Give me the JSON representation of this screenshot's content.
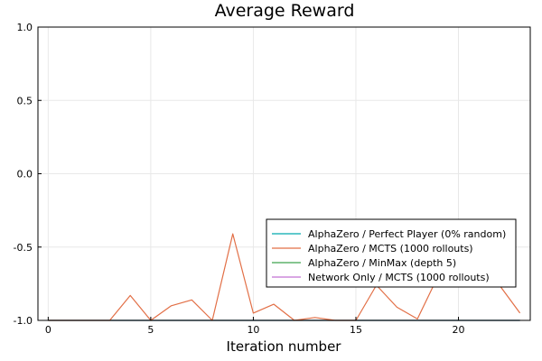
{
  "chart_data": {
    "type": "line",
    "title": "Average Reward",
    "xlabel": "Iteration number",
    "ylabel": "",
    "xlim": [
      -0.5,
      23.5
    ],
    "ylim": [
      -1.0,
      1.0
    ],
    "xticks": [
      0,
      5,
      10,
      15,
      20
    ],
    "yticks": [
      -1.0,
      -0.5,
      0.0,
      0.5,
      1.0
    ],
    "ytick_labels": [
      "-1.0",
      "-0.5",
      "0.0",
      "0.5",
      "1.0"
    ],
    "grid": true,
    "legend_position": "bottom-right",
    "series": [
      {
        "name": "AlphaZero / Perfect Player (0% random)",
        "color": "#00a9ad",
        "x": [
          0,
          1,
          2,
          3,
          4,
          5,
          6,
          7,
          8,
          9,
          10,
          11,
          12,
          13,
          14,
          15,
          16,
          17,
          18,
          19,
          20,
          21,
          22,
          23
        ],
        "y": [
          -1,
          -1,
          -1,
          -1,
          -1,
          -1,
          -1,
          -1,
          -1,
          -1,
          -1,
          -1,
          -1,
          -1,
          -1,
          -1,
          -1,
          -1,
          -1,
          -1,
          -1,
          -1,
          -1,
          -1
        ]
      },
      {
        "name": "AlphaZero / MCTS (1000 rollouts)",
        "color": "#e26f46",
        "x": [
          0,
          1,
          2,
          3,
          4,
          5,
          6,
          7,
          8,
          9,
          10,
          11,
          12,
          13,
          14,
          15,
          16,
          17,
          18,
          19,
          20,
          21,
          22,
          23
        ],
        "y": [
          -1.0,
          -1.0,
          -1.0,
          -1.0,
          -0.83,
          -1.0,
          -0.9,
          -0.86,
          -1.0,
          -0.41,
          -0.95,
          -0.89,
          -1.0,
          -0.98,
          -1.0,
          -1.0,
          -0.76,
          -0.91,
          -0.99,
          -0.7,
          -0.7,
          -0.7,
          -0.76,
          -0.95
        ]
      },
      {
        "name": "AlphaZero / MinMax (depth 5)",
        "color": "#3da44d",
        "x": [
          0,
          1,
          2,
          3,
          4,
          5,
          6,
          7,
          8,
          9,
          10,
          11,
          12,
          13,
          14,
          15,
          16,
          17,
          18,
          19,
          20,
          21,
          22,
          23
        ],
        "y": [
          -1,
          -1,
          -1,
          -1,
          -1,
          -1,
          -1,
          -1,
          -1,
          -1,
          -1,
          -1,
          -1,
          -1,
          -1,
          -1,
          -1,
          -1,
          -1,
          -1,
          -1,
          -1,
          -1,
          -1
        ]
      },
      {
        "name": "Network Only / MCTS (1000 rollouts)",
        "color": "#c271d2",
        "x": [
          0,
          1,
          2,
          3,
          4,
          5,
          6,
          7,
          8,
          9,
          10,
          11,
          12,
          13,
          14,
          15,
          16,
          17,
          18,
          19,
          20,
          21,
          22,
          23
        ],
        "y": [
          -1,
          -1,
          -1,
          -1,
          -1,
          -1,
          -1,
          -1,
          -1,
          -1,
          -1,
          -1,
          -1,
          -1,
          -1,
          -1,
          -1,
          -1,
          -1,
          -1,
          -1,
          -1,
          -1,
          -1
        ]
      }
    ]
  }
}
